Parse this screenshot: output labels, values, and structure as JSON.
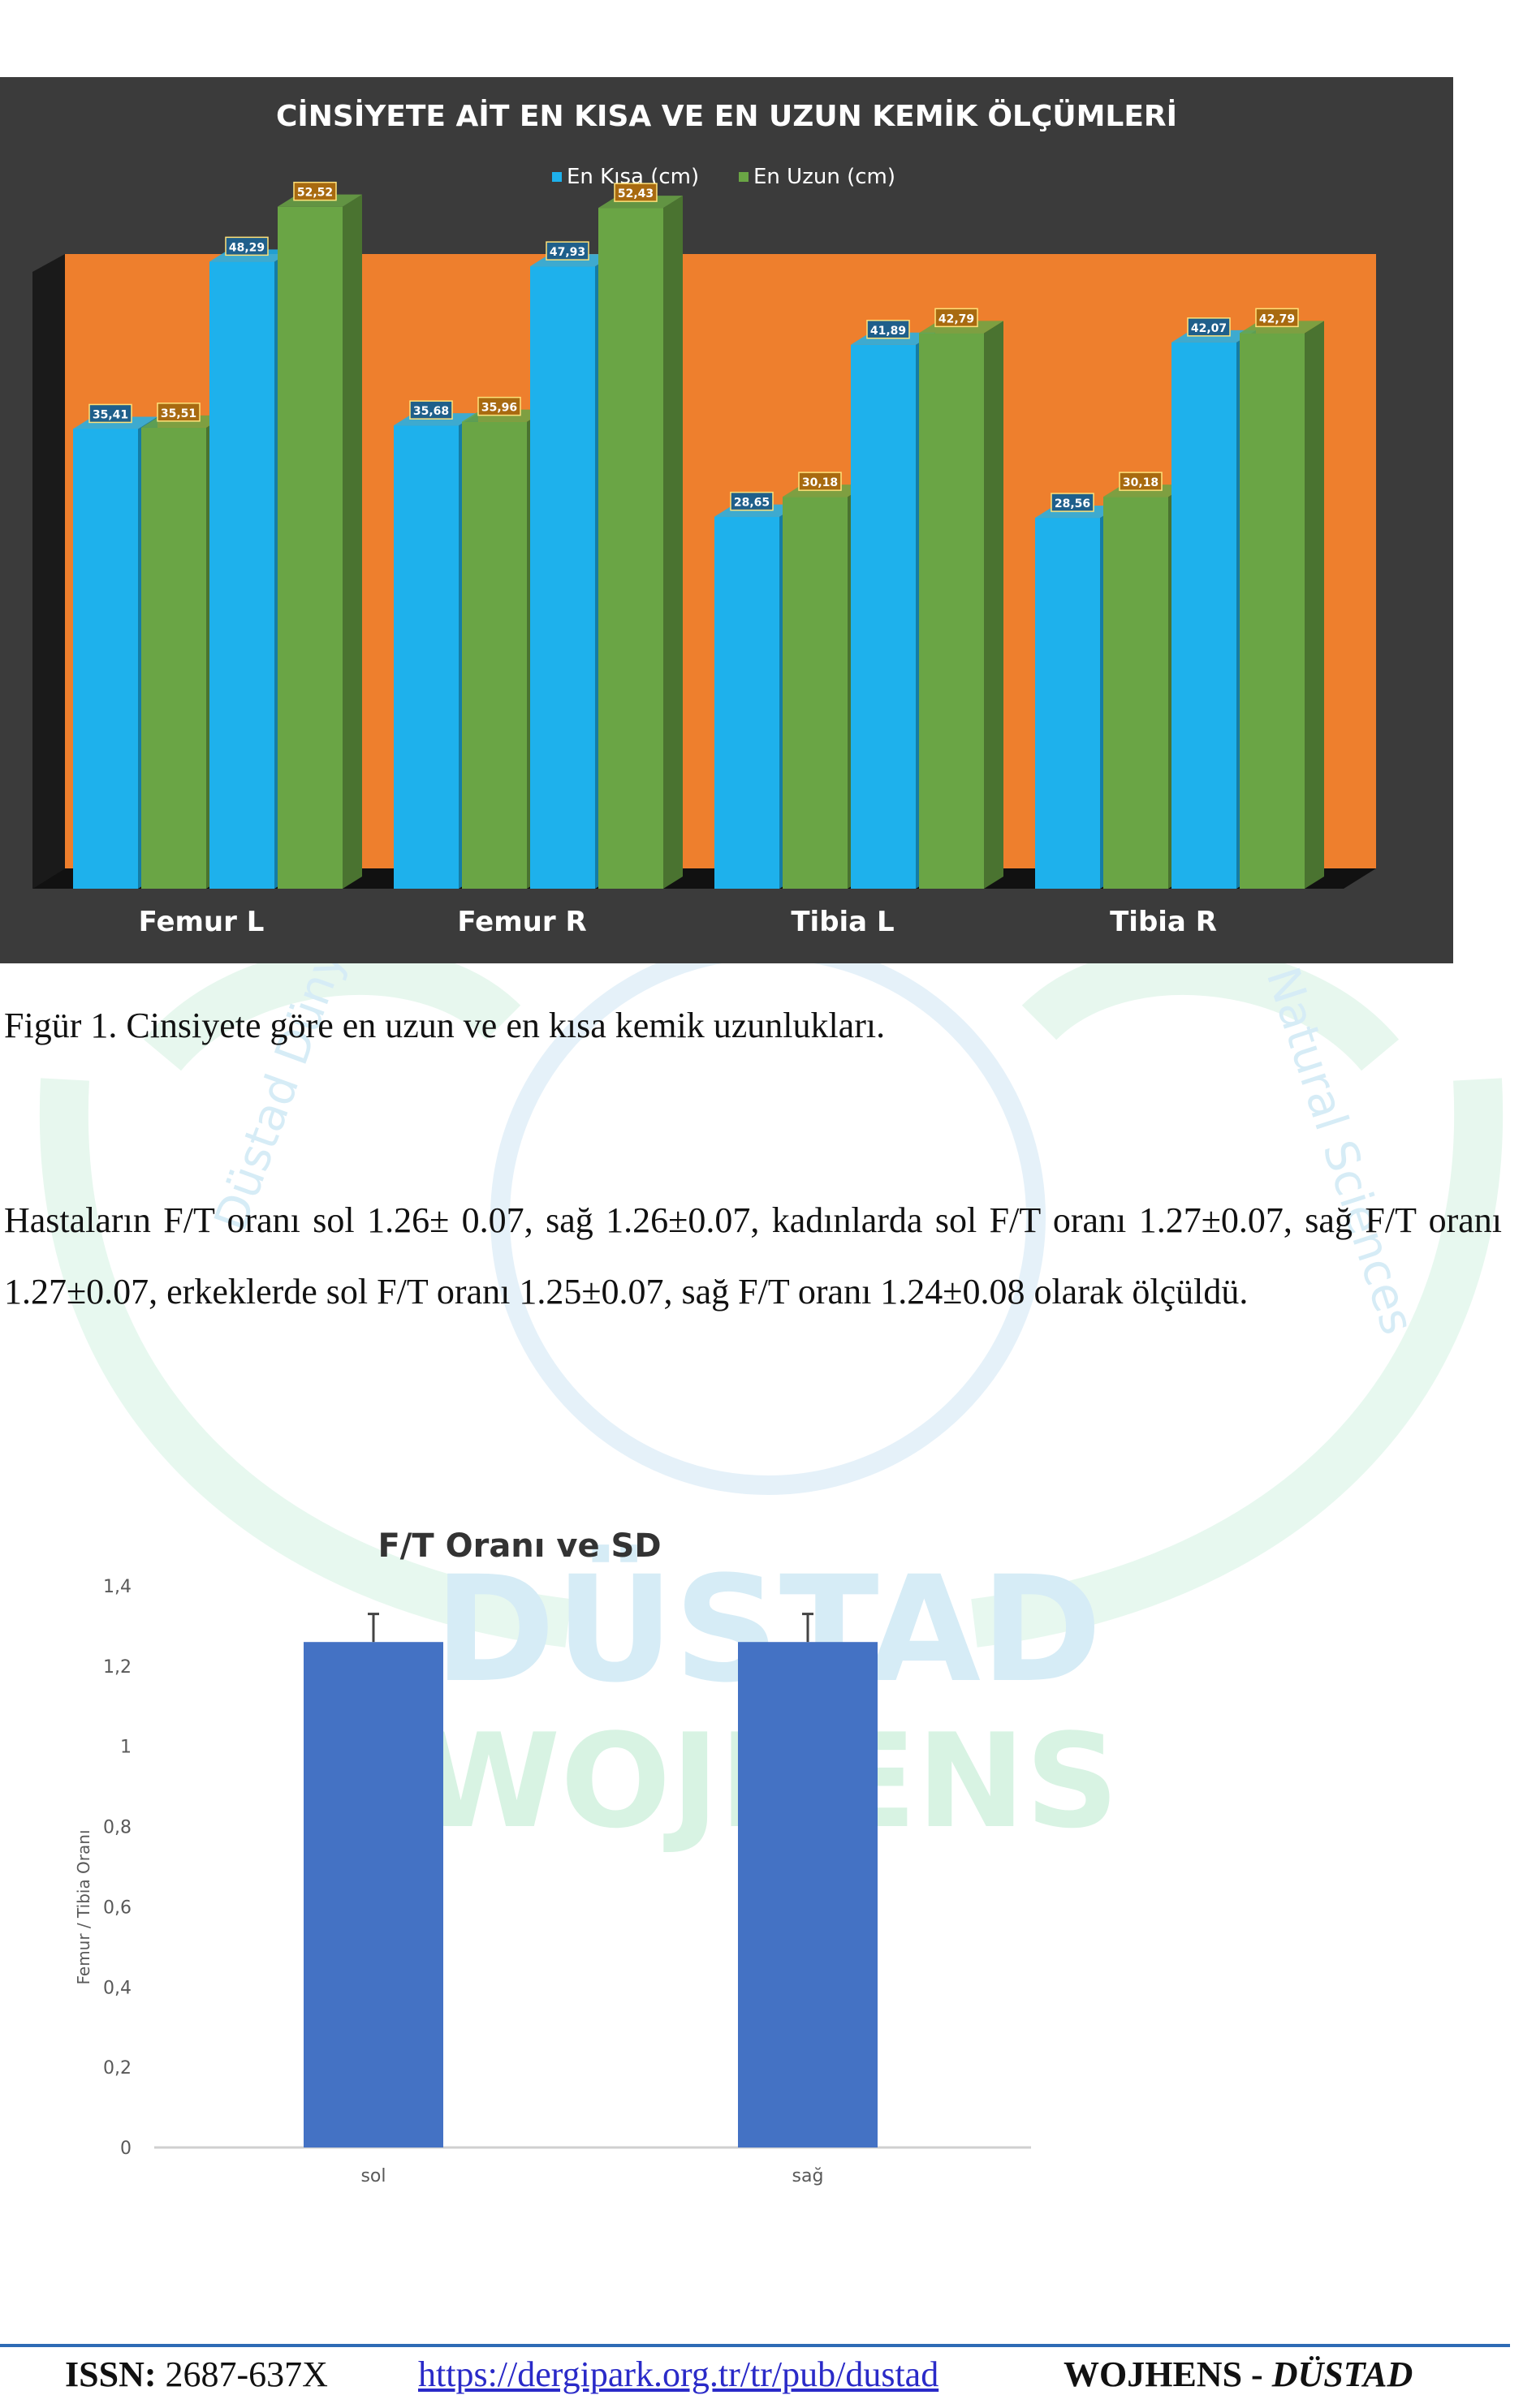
{
  "chart_data": [
    {
      "type": "bar",
      "title": "CİNSİYETE AİT EN KISA VE EN UZUN KEMİK ÖLÇÜMLERİ",
      "legend_position": "top",
      "categories": [
        "Femur L",
        "Femur R",
        "Tibia L",
        "Tibia R"
      ],
      "series": [
        {
          "name": "En Kısa (cm)",
          "color": "#1eb1ec",
          "pairs": [
            [
              35.41,
              48.29
            ],
            [
              35.68,
              47.93
            ],
            [
              28.65,
              41.89
            ],
            [
              28.56,
              42.07
            ]
          ]
        },
        {
          "name": "En Uzun (cm)",
          "color": "#6aa545",
          "pairs": [
            [
              35.51,
              52.52
            ],
            [
              35.96,
              52.43
            ],
            [
              30.18,
              42.79
            ],
            [
              30.18,
              42.79
            ]
          ]
        }
      ],
      "bars": [
        [
          {
            "series": 0,
            "value": 35.41,
            "label": "35,41"
          },
          {
            "series": 1,
            "value": 35.51,
            "label": "35,51"
          },
          {
            "series": 0,
            "value": 48.29,
            "label": "48,29"
          },
          {
            "series": 1,
            "value": 52.52,
            "label": "52,52"
          }
        ],
        [
          {
            "series": 0,
            "value": 35.68,
            "label": "35,68"
          },
          {
            "series": 1,
            "value": 35.96,
            "label": "35,96"
          },
          {
            "series": 0,
            "value": 47.93,
            "label": "47,93"
          },
          {
            "series": 1,
            "value": 52.43,
            "label": "52,43"
          }
        ],
        [
          {
            "series": 0,
            "value": 28.65,
            "label": "28,65"
          },
          {
            "series": 1,
            "value": 30.18,
            "label": "30,18"
          },
          {
            "series": 0,
            "value": 41.89,
            "label": "41,89"
          },
          {
            "series": 1,
            "value": 42.79,
            "label": "42,79"
          }
        ],
        [
          {
            "series": 0,
            "value": 28.56,
            "label": "28,56"
          },
          {
            "series": 1,
            "value": 30.18,
            "label": "30,18"
          },
          {
            "series": 0,
            "value": 42.07,
            "label": "42,07"
          },
          {
            "series": 1,
            "value": 42.79,
            "label": "42,79"
          }
        ]
      ],
      "ylim": [
        0,
        60
      ],
      "grid": false,
      "colors": {
        "background": "#3b3b3b",
        "plot": "#ee7f2d",
        "floor": "#111111",
        "text": "#ffffff"
      }
    },
    {
      "type": "bar",
      "title": "F/T Oranı ve SD",
      "categories": [
        "sol",
        "sağ"
      ],
      "values": [
        1.26,
        1.26
      ],
      "errors": [
        0.07,
        0.07
      ],
      "ylabel": "Femur / Tibia Oranı",
      "ylim": [
        0,
        1.4
      ],
      "yticks": [
        "0",
        "0,2",
        "0,4",
        "0,6",
        "0,8",
        "1",
        "1,2",
        "1,4"
      ],
      "grid": false,
      "colors": {
        "bar": "#4472c4",
        "axis": "#d0d0d0",
        "text": "#595959"
      }
    }
  ],
  "caption": "Figür 1. Cinsiyete göre en uzun ve en kısa kemik uzunlukları.",
  "paragraph": "Hastaların F/T oranı sol 1.26± 0.07, sağ 1.26±0.07, kadınlarda sol F/T oranı 1.27±0.07, sağ F/T oranı 1.27±0.07, erkeklerde sol F/T oranı 1.25±0.07, sağ F/T oranı 1.24±0.08 olarak ölçüldü.",
  "watermark": {
    "line1": "DÜSTAD",
    "line2": "WOJHENS",
    "arc_left": "Düstad Dünya Sağlık",
    "arc_right": "Natural Sciences",
    "color": "#c8eeda"
  },
  "footer": {
    "issn_label": "ISSN:",
    "issn_value": "2687-637X",
    "url": "https://dergipark.org.tr/tr/pub/dustad",
    "journal": "WOJHENS - ",
    "journal_em": "DÜSTAD",
    "line_color": "#2e6bb5"
  }
}
